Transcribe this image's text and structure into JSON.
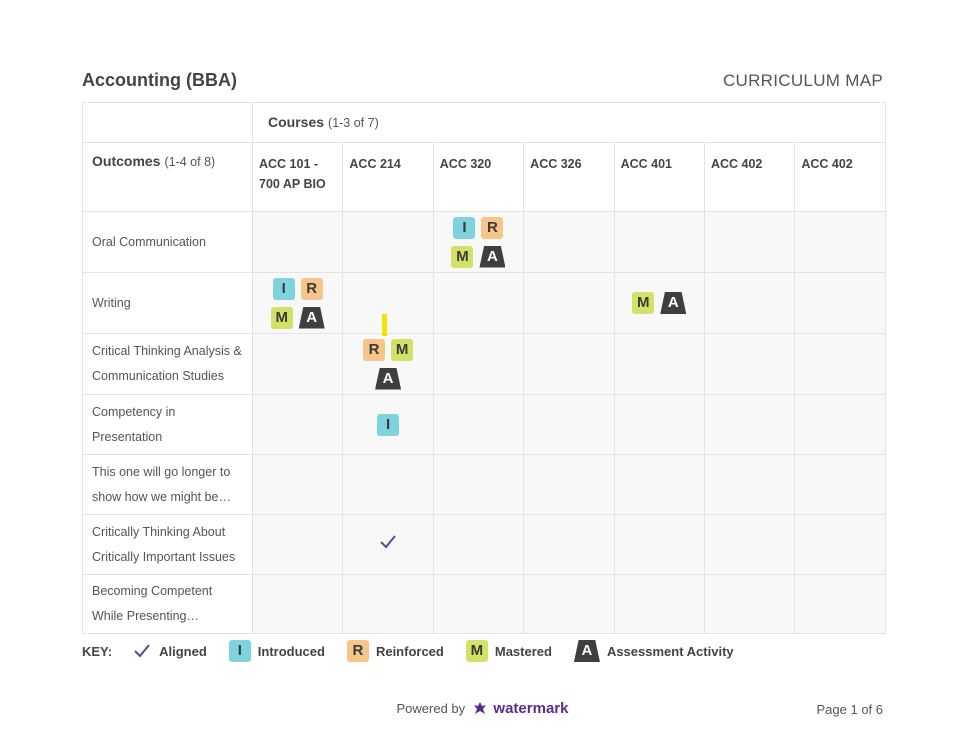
{
  "header": {
    "program_title": "Accounting (BBA)",
    "doc_type": "CURRICULUM MAP"
  },
  "table": {
    "courses_label": "Courses",
    "courses_range": "(1-3 of 7)",
    "outcomes_label": "Outcomes",
    "outcomes_range": "(1-4 of 8)",
    "courses": [
      "ACC 101 - 700 AP BIO",
      "ACC 214",
      "ACC 320",
      "ACC 326",
      "ACC 401",
      "ACC 402",
      "ACC 402"
    ],
    "rows": [
      {
        "outcome": "Oral Communication",
        "cells": [
          [],
          [],
          [
            "I",
            "R",
            "M",
            "A"
          ],
          [],
          [],
          [],
          []
        ]
      },
      {
        "outcome": "Writing",
        "cells": [
          [
            "I",
            "R",
            "M",
            "A"
          ],
          [],
          [],
          [],
          [
            "M",
            "A"
          ],
          [],
          []
        ]
      },
      {
        "outcome": "Critical Thinking Analysis & Communication Studies",
        "cells": [
          [],
          [
            "R",
            "M",
            "A"
          ],
          [],
          [],
          [],
          [],
          []
        ]
      },
      {
        "outcome": "Competency in Presentation",
        "cells": [
          [],
          [
            "I"
          ],
          [],
          [],
          [],
          [],
          []
        ]
      },
      {
        "outcome": "This one will go longer to show how we might be handling this",
        "cells": [
          [],
          [],
          [],
          [],
          [],
          [],
          []
        ]
      },
      {
        "outcome": "Critically Thinking About Critically Important Issues",
        "cells": [
          [],
          [
            "check"
          ],
          [],
          [],
          [],
          [],
          []
        ]
      },
      {
        "outcome": "Becoming Competent While Presenting Presentations",
        "cells": [
          [],
          [],
          [],
          [],
          [],
          [],
          []
        ]
      }
    ]
  },
  "key": {
    "label": "KEY:",
    "items": [
      {
        "code": "check",
        "label": "Aligned"
      },
      {
        "code": "I",
        "label": "Introduced"
      },
      {
        "code": "R",
        "label": "Reinforced"
      },
      {
        "code": "M",
        "label": "Mastered"
      },
      {
        "code": "A",
        "label": "Assessment Activity"
      }
    ]
  },
  "footer": {
    "powered_by": "Powered by",
    "brand": "watermark",
    "page": "Page 1 of 6"
  },
  "colors": {
    "introduced": "#7fd3de",
    "reinforced": "#f6c58a",
    "mastered": "#d3e166",
    "assessment": "#3f3f3f",
    "aligned": "#5a4a8c",
    "brand": "#5a2d8c"
  }
}
